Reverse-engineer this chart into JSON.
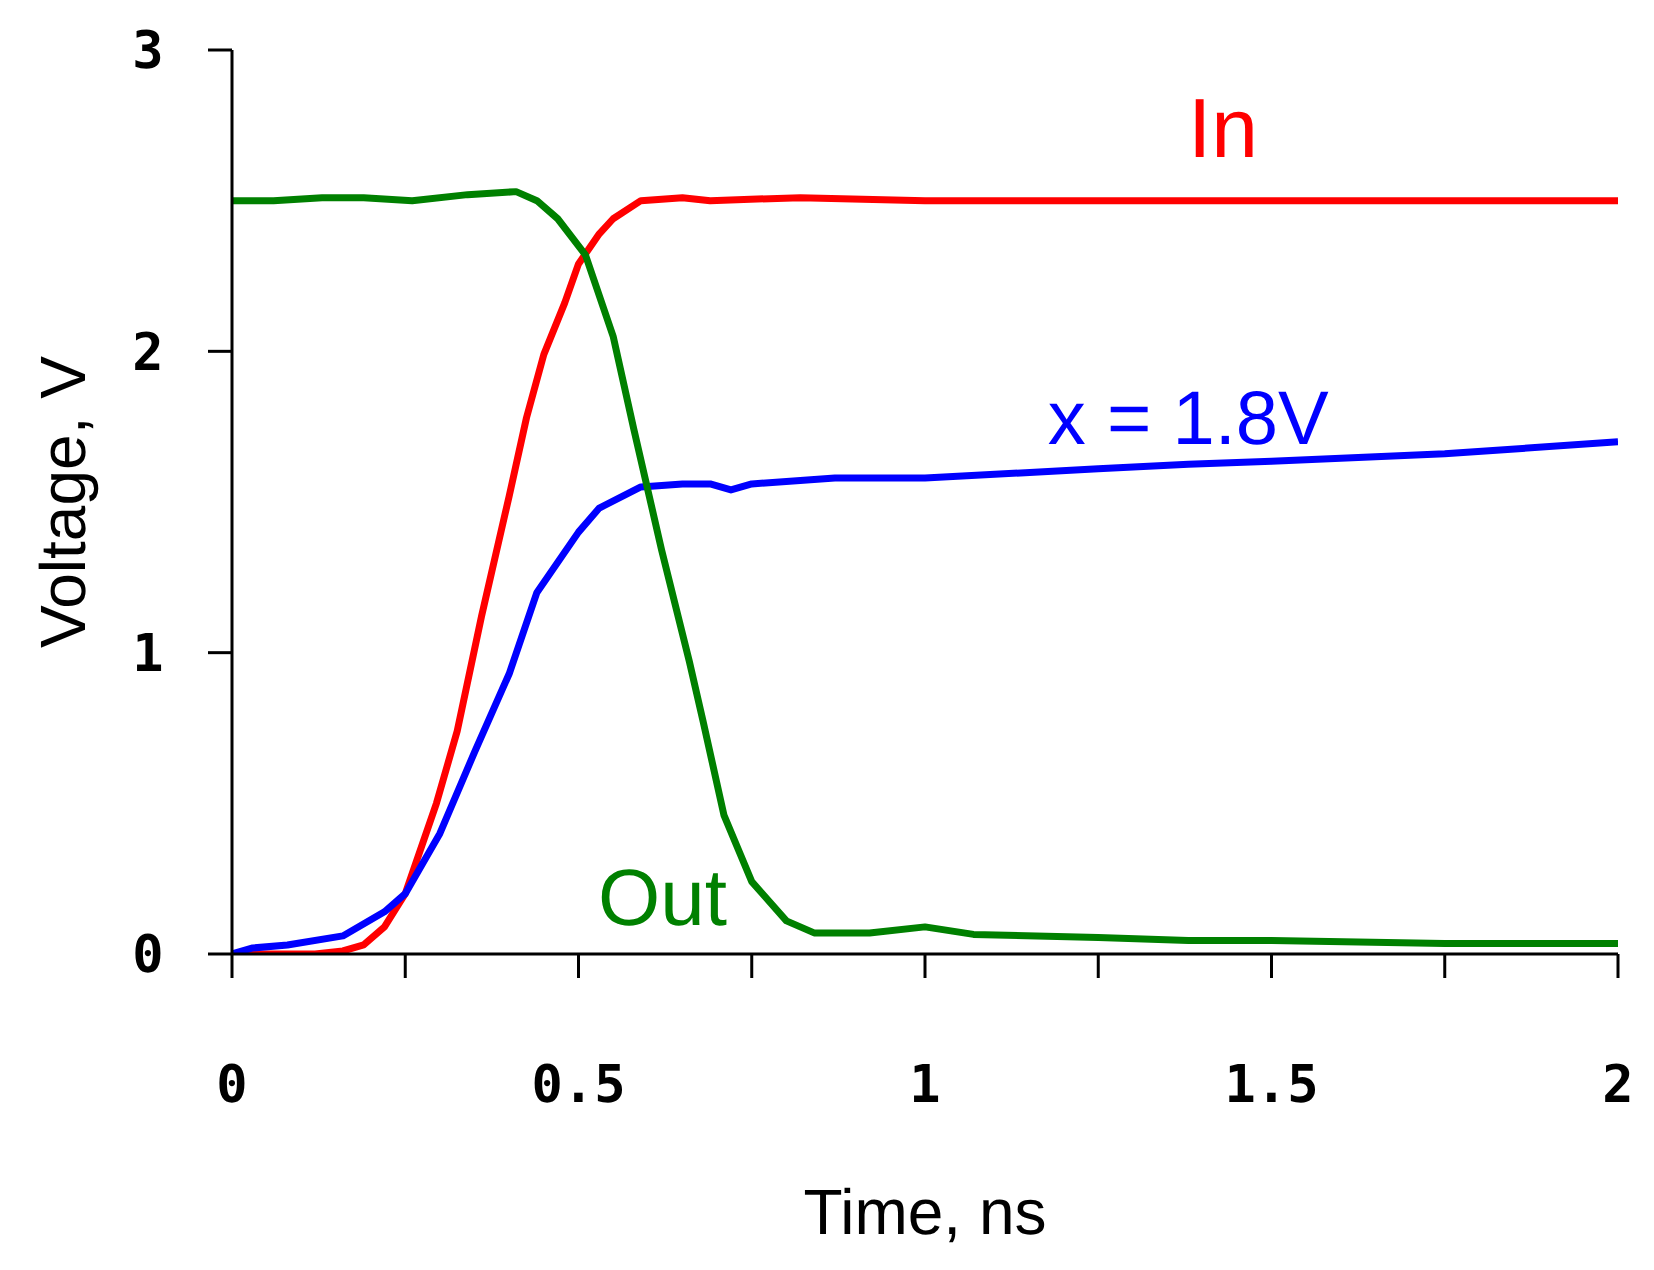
{
  "chart_data": {
    "type": "line",
    "xlabel": "Time, ns",
    "ylabel": "Voltage, V",
    "xlim": [
      0,
      2
    ],
    "ylim": [
      0,
      3
    ],
    "xticks": [
      0,
      {
        "value": 0.25,
        "label": null
      },
      0.5,
      {
        "value": 0.75,
        "label": null
      },
      1,
      {
        "value": 1.25,
        "label": null
      },
      1.5,
      {
        "value": 1.75,
        "label": null
      },
      2
    ],
    "yticks": [
      0,
      1,
      2,
      3
    ],
    "series": [
      {
        "name": "In",
        "color": "#ff0000",
        "x": [
          0,
          0.07,
          0.12,
          0.16,
          0.19,
          0.22,
          0.25,
          0.295,
          0.325,
          0.36,
          0.4,
          0.425,
          0.45,
          0.48,
          0.5,
          0.53,
          0.55,
          0.59,
          0.65,
          0.69,
          0.82,
          1,
          1.43,
          2
        ],
        "values": [
          0,
          0,
          0,
          0.01,
          0.03,
          0.09,
          0.2,
          0.5,
          0.74,
          1.12,
          1.52,
          1.78,
          1.99,
          2.16,
          2.29,
          2.39,
          2.44,
          2.5,
          2.51,
          2.5,
          2.51,
          2.5,
          2.5,
          2.5
        ]
      },
      {
        "name": "x = 1.8V",
        "color": "#0000ff",
        "x": [
          0,
          0.03,
          0.08,
          0.16,
          0.22,
          0.25,
          0.3,
          0.35,
          0.4,
          0.44,
          0.5,
          0.53,
          0.59,
          0.65,
          0.69,
          0.72,
          0.75,
          0.87,
          1,
          1.25,
          1.38,
          1.5,
          1.75,
          2
        ],
        "values": [
          0,
          0.02,
          0.03,
          0.06,
          0.14,
          0.2,
          0.4,
          0.67,
          0.93,
          1.2,
          1.4,
          1.48,
          1.55,
          1.56,
          1.56,
          1.54,
          1.56,
          1.58,
          1.58,
          1.61,
          1.625,
          1.635,
          1.66,
          1.7
        ]
      },
      {
        "name": "Out",
        "color": "#008000",
        "x": [
          0,
          0.06,
          0.13,
          0.19,
          0.26,
          0.34,
          0.41,
          0.44,
          0.47,
          0.51,
          0.55,
          0.58,
          0.62,
          0.66,
          0.68,
          0.71,
          0.75,
          0.8,
          0.84,
          0.92,
          1,
          1.07,
          1.25,
          1.38,
          1.5,
          1.75,
          2
        ],
        "values": [
          2.5,
          2.5,
          2.51,
          2.51,
          2.5,
          2.52,
          2.53,
          2.5,
          2.44,
          2.32,
          2.05,
          1.74,
          1.34,
          0.97,
          0.77,
          0.46,
          0.24,
          0.11,
          0.07,
          0.07,
          0.09,
          0.065,
          0.055,
          0.045,
          0.045,
          0.035,
          0.035
        ]
      }
    ]
  }
}
